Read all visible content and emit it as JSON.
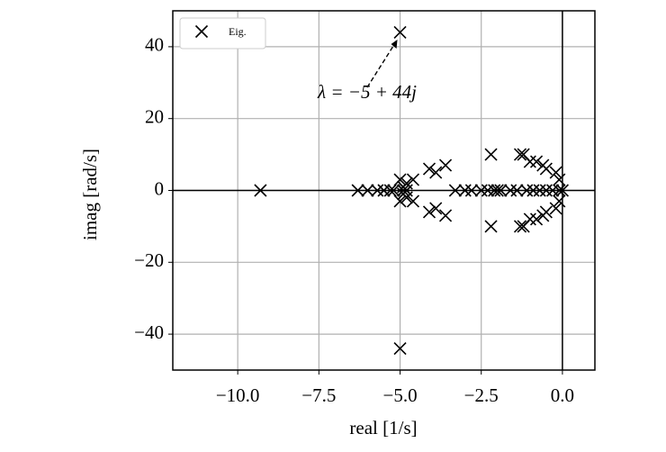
{
  "chart_data": {
    "type": "scatter",
    "x_label": "real [1/s]",
    "y_label": "imag [rad/s]",
    "xlim": [
      -12,
      1
    ],
    "ylim": [
      -50,
      50
    ],
    "xticks": [
      {
        "value": -10,
        "label": "−10.0"
      },
      {
        "value": -7.5,
        "label": "−7.5"
      },
      {
        "value": -5,
        "label": "−5.0"
      },
      {
        "value": -2.5,
        "label": "−2.5"
      },
      {
        "value": 0,
        "label": "0.0"
      }
    ],
    "yticks": [
      {
        "value": -40,
        "label": "−40"
      },
      {
        "value": -20,
        "label": "−20"
      },
      0,
      20,
      40
    ],
    "grid": true,
    "legend": "upper left",
    "annotation": "λ = −5 + 44j",
    "series": [
      {
        "name": "Eig.",
        "color": "#000000",
        "x": [
          -5,
          -5,
          -9.3,
          -2.2,
          -2.2,
          -1.3,
          -1.3,
          -1.2,
          -1.2,
          -1.0,
          -1.0,
          -0.8,
          -0.8,
          -0.6,
          -0.6,
          -0.5,
          -0.5,
          -0.2,
          -0.2,
          -0.1,
          -0.1,
          -6.3,
          -6.0,
          -5.7,
          -5.5,
          -5.3,
          -5.2,
          -4.9,
          -4.8,
          -3.3,
          -3.0,
          -2.8,
          -2.5,
          -2.3,
          -2.1,
          -2.0,
          -1.9,
          -1.6,
          -1.4,
          -1.1,
          -0.9,
          -0.7,
          -0.5,
          -0.3,
          -0.1,
          0,
          -5,
          -5,
          -4.8,
          -4.8,
          -4.6,
          -4.6,
          -4.1,
          -4.1,
          -3.9,
          -3.9,
          -3.6,
          -3.6,
          -4.9,
          -4.9
        ],
        "values": [
          44,
          -44,
          0,
          10,
          -10,
          10,
          -10,
          10,
          -10,
          8,
          -8,
          8,
          -8,
          7,
          -7,
          6,
          -6,
          5,
          -5,
          3,
          -3,
          0,
          0,
          0,
          0,
          0,
          0,
          0,
          0,
          0,
          0,
          0,
          0,
          0,
          0,
          0,
          0,
          0,
          0,
          0,
          0,
          0,
          0,
          0,
          0,
          0,
          3,
          -3,
          2,
          -2,
          3,
          -3,
          6,
          -6,
          5,
          -5,
          7,
          -7,
          1,
          -1
        ]
      }
    ]
  }
}
